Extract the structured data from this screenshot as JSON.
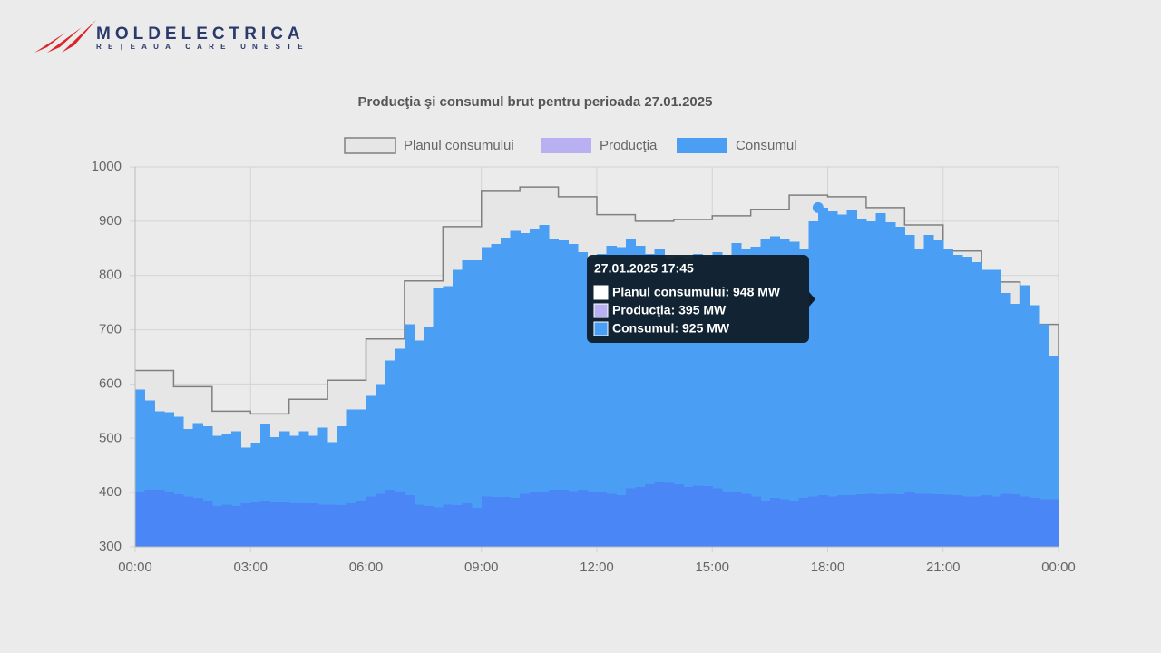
{
  "header": {
    "brand": "MOLDELECTRICA",
    "tagline": "REȚEAUA CARE UNEȘTE"
  },
  "chart_data": {
    "type": "step-area",
    "title": "Producţia şi consumul brut pentru perioada 27.01.2025",
    "x": [
      0,
      0.25,
      0.5,
      0.75,
      1,
      1.25,
      1.5,
      1.75,
      2,
      2.25,
      2.5,
      2.75,
      3,
      3.25,
      3.5,
      3.75,
      4,
      4.25,
      4.5,
      4.75,
      5,
      5.25,
      5.5,
      5.75,
      6,
      6.25,
      6.5,
      6.75,
      7,
      7.25,
      7.5,
      7.75,
      8,
      8.25,
      8.5,
      8.75,
      9,
      9.25,
      9.5,
      9.75,
      10,
      10.25,
      10.5,
      10.75,
      11,
      11.25,
      11.5,
      11.75,
      12,
      12.25,
      12.5,
      12.75,
      13,
      13.25,
      13.5,
      13.75,
      14,
      14.25,
      14.5,
      14.75,
      15,
      15.25,
      15.5,
      15.75,
      16,
      16.25,
      16.5,
      16.75,
      17,
      17.25,
      17.5,
      17.75,
      18,
      18.25,
      18.5,
      18.75,
      19,
      19.25,
      19.5,
      19.75,
      20,
      20.25,
      20.5,
      20.75,
      21,
      21.25,
      21.5,
      21.75,
      22,
      22.25,
      22.5,
      22.75,
      23,
      23.25,
      23.5,
      23.75
    ],
    "xlim": [
      0,
      24
    ],
    "xticks": [
      {
        "value": 0,
        "label": "00:00"
      },
      {
        "value": 3,
        "label": "03:00"
      },
      {
        "value": 6,
        "label": "06:00"
      },
      {
        "value": 9,
        "label": "09:00"
      },
      {
        "value": 12,
        "label": "12:00"
      },
      {
        "value": 15,
        "label": "15:00"
      },
      {
        "value": 18,
        "label": "18:00"
      },
      {
        "value": 21,
        "label": "21:00"
      },
      {
        "value": 24,
        "label": "00:00"
      }
    ],
    "ylim": [
      300,
      1000
    ],
    "yticks": [
      300,
      400,
      500,
      600,
      700,
      800,
      900,
      1000
    ],
    "grid": true,
    "series": [
      {
        "name": "Planul consumului",
        "color": "#e6e6e6",
        "stroke": "#808080",
        "values": [
          625,
          625,
          625,
          625,
          595,
          595,
          595,
          595,
          550,
          550,
          550,
          550,
          545,
          545,
          545,
          545,
          572,
          572,
          572,
          572,
          607,
          607,
          607,
          607,
          683,
          683,
          683,
          683,
          790,
          790,
          790,
          790,
          890,
          890,
          890,
          890,
          955,
          955,
          955,
          955,
          963,
          963,
          963,
          963,
          945,
          945,
          945,
          945,
          912,
          912,
          912,
          912,
          900,
          900,
          900,
          900,
          903,
          903,
          903,
          903,
          910,
          910,
          910,
          910,
          922,
          922,
          922,
          922,
          948,
          948,
          948,
          948,
          945,
          945,
          945,
          945,
          925,
          925,
          925,
          925,
          893,
          893,
          893,
          893,
          845,
          845,
          845,
          845,
          788,
          788,
          788,
          788,
          710,
          710,
          710,
          710
        ]
      },
      {
        "name": "Producţia",
        "color": "#b8b0f0",
        "values": [
          402,
          405,
          405,
          400,
          397,
          393,
          390,
          385,
          375,
          378,
          375,
          380,
          383,
          385,
          382,
          383,
          380,
          380,
          380,
          378,
          378,
          377,
          380,
          385,
          393,
          398,
          405,
          402,
          395,
          378,
          375,
          373,
          378,
          377,
          380,
          372,
          393,
          392,
          392,
          390,
          398,
          402,
          402,
          405,
          405,
          403,
          405,
          400,
          400,
          398,
          395,
          408,
          410,
          415,
          420,
          418,
          415,
          410,
          413,
          412,
          408,
          402,
          400,
          398,
          393,
          385,
          390,
          388,
          385,
          390,
          393,
          395,
          393,
          395,
          395,
          397,
          398,
          397,
          398,
          397,
          400,
          398,
          398,
          397,
          396,
          395,
          393,
          393,
          395,
          393,
          398,
          397,
          393,
          390,
          388,
          388
        ]
      },
      {
        "name": "Consumul",
        "color": "#4a9ff5",
        "values": [
          590,
          570,
          550,
          548,
          540,
          517,
          528,
          522,
          505,
          507,
          513,
          483,
          492,
          527,
          502,
          513,
          505,
          513,
          505,
          520,
          493,
          522,
          553,
          553,
          578,
          600,
          643,
          665,
          710,
          680,
          705,
          778,
          780,
          810,
          828,
          828,
          852,
          858,
          870,
          882,
          878,
          885,
          893,
          868,
          865,
          858,
          843,
          835,
          840,
          855,
          852,
          868,
          855,
          840,
          848,
          830,
          835,
          830,
          840,
          835,
          843,
          838,
          860,
          850,
          853,
          867,
          872,
          868,
          862,
          848,
          900,
          925,
          918,
          912,
          920,
          905,
          900,
          915,
          898,
          890,
          875,
          850,
          875,
          865,
          850,
          838,
          835,
          825,
          810,
          810,
          768,
          748,
          782,
          745,
          710,
          652
        ]
      }
    ],
    "tooltip": {
      "title": "27.01.2025 17:45",
      "index": 71,
      "items": [
        "Planul consumului: 948 MW",
        "Producţia: 395 MW",
        "Consumul: 925 MW"
      ]
    }
  }
}
